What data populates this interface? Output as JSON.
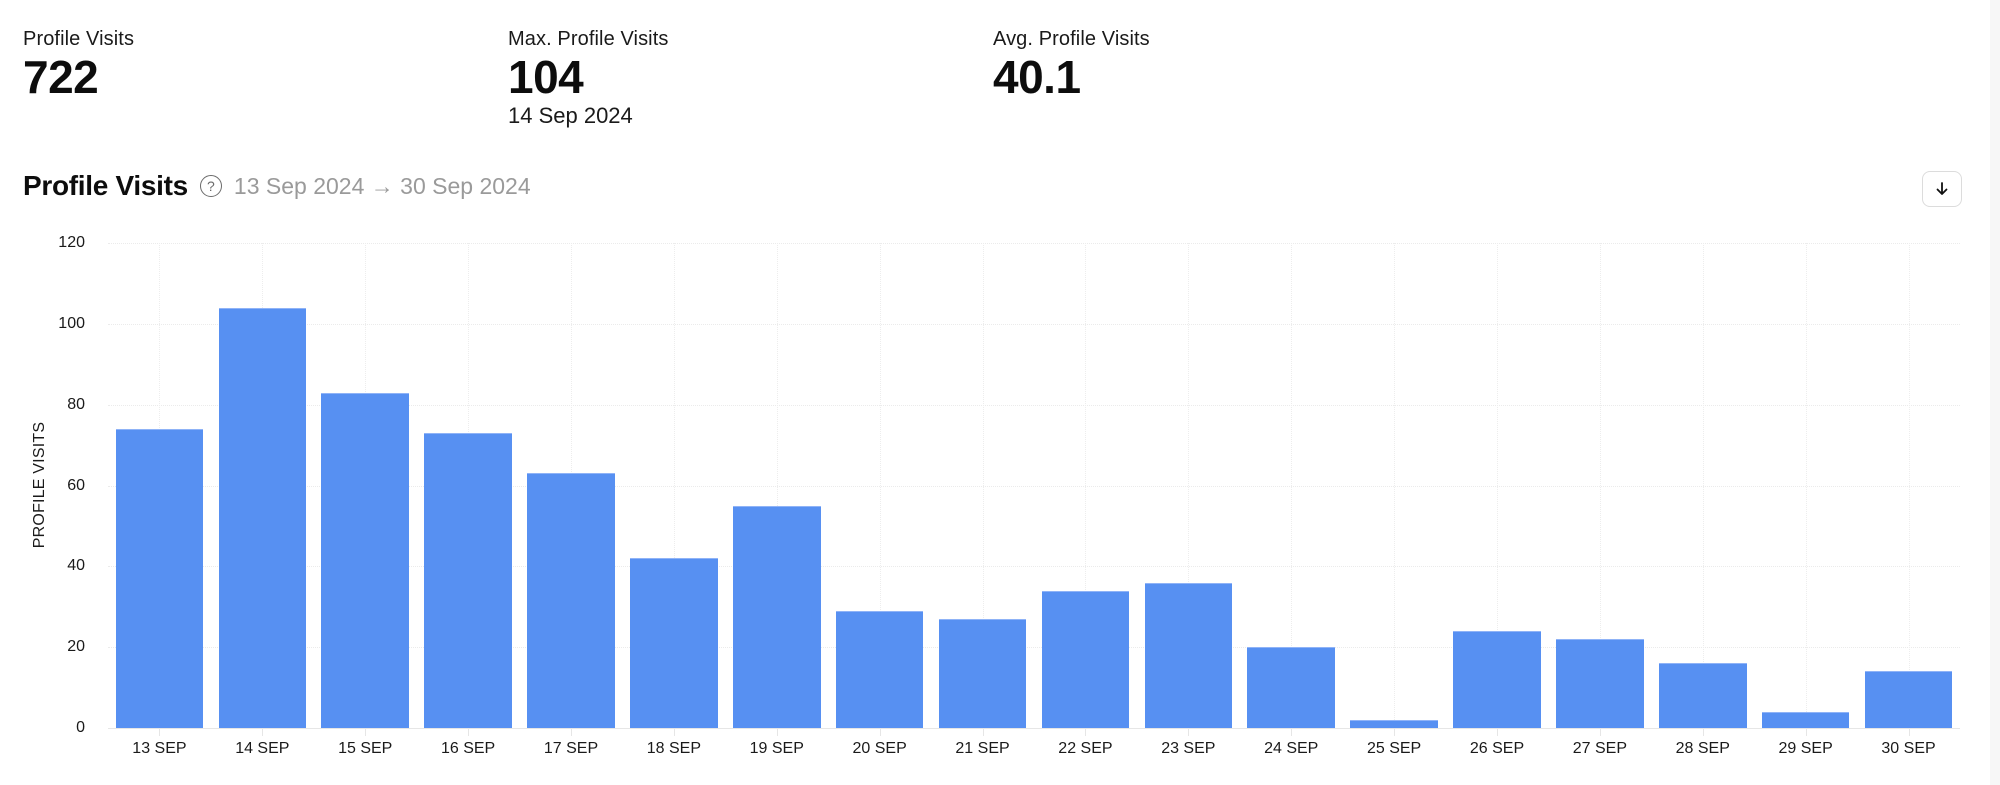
{
  "stats": [
    {
      "label": "Profile Visits",
      "value": "722"
    },
    {
      "label": "Max. Profile Visits",
      "value": "104",
      "sub": "14 Sep 2024"
    },
    {
      "label": "Avg. Profile Visits",
      "value": "40.1"
    }
  ],
  "chart_header": {
    "title": "Profile Visits",
    "help_icon": "?",
    "date_range": "13 Sep 2024 → 30 Sep 2024",
    "download_icon": "↓"
  },
  "colors": {
    "bar": "#5790f2",
    "bar_top": "#8fb3f7",
    "grid": "#ebebeb",
    "muted_text": "#9a9a9a"
  },
  "chart_data": {
    "type": "bar",
    "title": "Profile Visits",
    "subtitle": "13 Sep 2024 → 30 Sep 2024",
    "xlabel": "",
    "ylabel": "PROFILE VISITS",
    "ylim": [
      0,
      120
    ],
    "yticks": [
      0,
      20,
      40,
      60,
      80,
      100,
      120
    ],
    "grid": true,
    "legend": null,
    "categories": [
      "13 SEP",
      "14 SEP",
      "15 SEP",
      "16 SEP",
      "17 SEP",
      "18 SEP",
      "19 SEP",
      "20 SEP",
      "21 SEP",
      "22 SEP",
      "23 SEP",
      "24 SEP",
      "25 SEP",
      "26 SEP",
      "27 SEP",
      "28 SEP",
      "29 SEP",
      "30 SEP"
    ],
    "values": [
      74,
      104,
      83,
      73,
      63,
      42,
      55,
      29,
      27,
      34,
      36,
      20,
      2,
      24,
      22,
      16,
      4,
      14
    ]
  }
}
